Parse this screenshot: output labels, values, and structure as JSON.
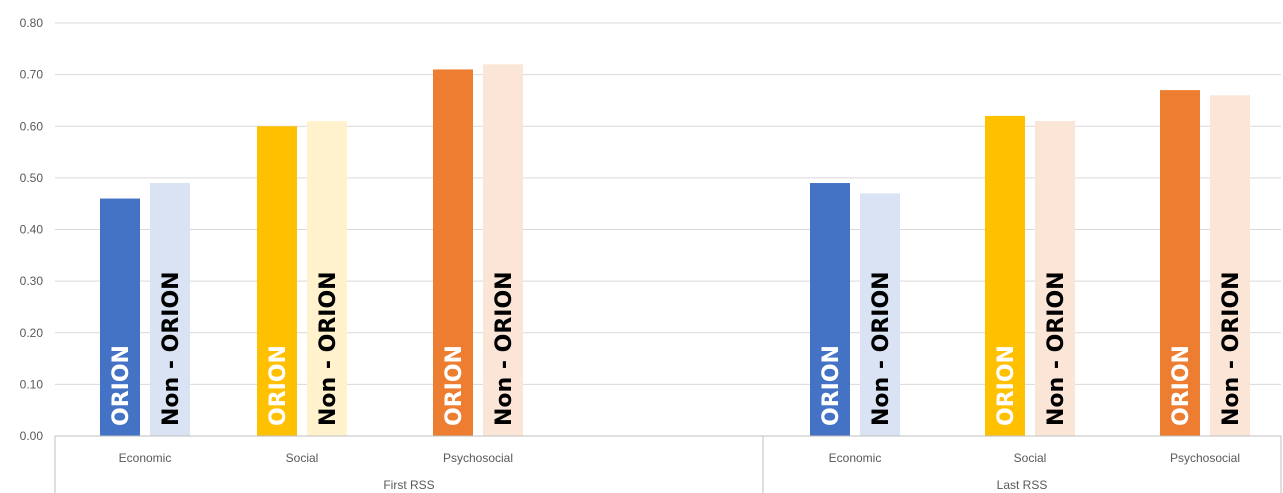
{
  "chart_data": {
    "type": "bar",
    "title": "",
    "xlabel": "",
    "ylabel": "",
    "ylim": [
      0,
      0.8
    ],
    "yticks": [
      "0.00",
      "0.10",
      "0.20",
      "0.30",
      "0.40",
      "0.50",
      "0.60",
      "0.70",
      "0.80"
    ],
    "grid": true,
    "legend": "none",
    "groups": [
      {
        "label": "First RSS",
        "categories": [
          {
            "label": "Economic",
            "bars": [
              {
                "label": "ORION",
                "value": 0.46,
                "color": "#4472C4",
                "text_color": "#FFFFFF"
              },
              {
                "label": "Non - ORION",
                "value": 0.49,
                "color": "#DAE3F3",
                "text_color": "#000000"
              }
            ]
          },
          {
            "label": "Social",
            "bars": [
              {
                "label": "ORION",
                "value": 0.6,
                "color": "#FFC000",
                "text_color": "#FFFFFF"
              },
              {
                "label": "Non - ORION",
                "value": 0.61,
                "color": "#FFF2CC",
                "text_color": "#000000"
              }
            ]
          },
          {
            "label": "Psychosocial",
            "bars": [
              {
                "label": "ORION",
                "value": 0.71,
                "color": "#ED7D31",
                "text_color": "#FFFFFF"
              },
              {
                "label": "Non - ORION",
                "value": 0.72,
                "color": "#FBE5D6",
                "text_color": "#000000"
              }
            ]
          }
        ]
      },
      {
        "label": "Last RSS",
        "categories": [
          {
            "label": "Economic",
            "bars": [
              {
                "label": "ORION",
                "value": 0.49,
                "color": "#4472C4",
                "text_color": "#FFFFFF"
              },
              {
                "label": "Non - ORION",
                "value": 0.47,
                "color": "#DAE3F3",
                "text_color": "#000000"
              }
            ]
          },
          {
            "label": "Social",
            "bars": [
              {
                "label": "ORION",
                "value": 0.62,
                "color": "#FFC000",
                "text_color": "#FFFFFF"
              },
              {
                "label": "Non - ORION",
                "value": 0.61,
                "color": "#FBE5D6",
                "text_color": "#000000"
              }
            ]
          },
          {
            "label": "Psychosocial",
            "bars": [
              {
                "label": "ORION",
                "value": 0.67,
                "color": "#ED7D31",
                "text_color": "#FFFFFF"
              },
              {
                "label": "Non - ORION",
                "value": 0.66,
                "color": "#FBE5D6",
                "text_color": "#000000"
              }
            ]
          }
        ]
      }
    ]
  }
}
